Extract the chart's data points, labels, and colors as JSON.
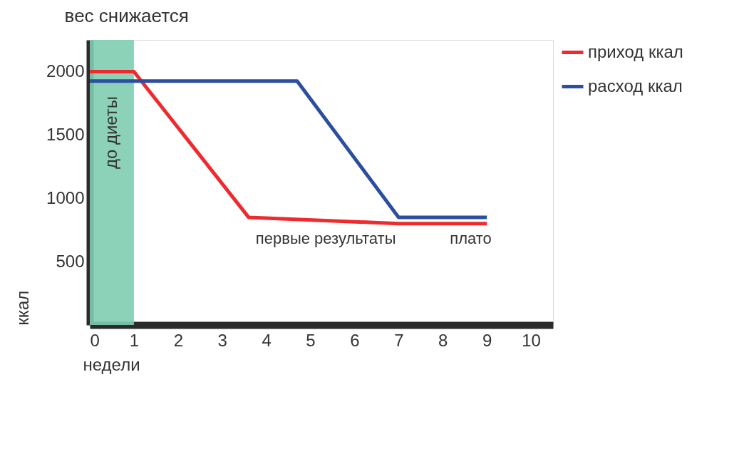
{
  "chart_data": {
    "type": "line",
    "title": "вес снижается",
    "xlabel": "недели",
    "ylabel": "ккал",
    "xlim": [
      0,
      10.5
    ],
    "xticks": [
      0,
      1,
      2,
      3,
      4,
      5,
      6,
      7,
      8,
      9,
      10
    ],
    "ylim": [
      0,
      2250
    ],
    "yticks": [
      500,
      1000,
      1500,
      2000
    ],
    "series": [
      {
        "name": "приход ккал",
        "color": "#ee2a2f",
        "x": [
          0,
          1,
          3.6,
          7,
          9
        ],
        "values": [
          2000,
          2000,
          850,
          800,
          800
        ]
      },
      {
        "name": "расход ккал",
        "color": "#2c4ea0",
        "x": [
          0,
          4.7,
          7,
          9
        ],
        "values": [
          1925,
          1925,
          850,
          850
        ]
      }
    ],
    "bands": [
      {
        "axis": "x",
        "from": 0,
        "to": 1,
        "label": "до диеты",
        "color": "#7fcdb0"
      }
    ],
    "annotations": [
      {
        "text": "плато",
        "x": 8,
        "y": 850
      },
      {
        "text": "первые результаты",
        "x": 3.6,
        "y": 850
      }
    ],
    "legend": "top right",
    "grid": false,
    "marker": "none",
    "line_style": "solid"
  }
}
